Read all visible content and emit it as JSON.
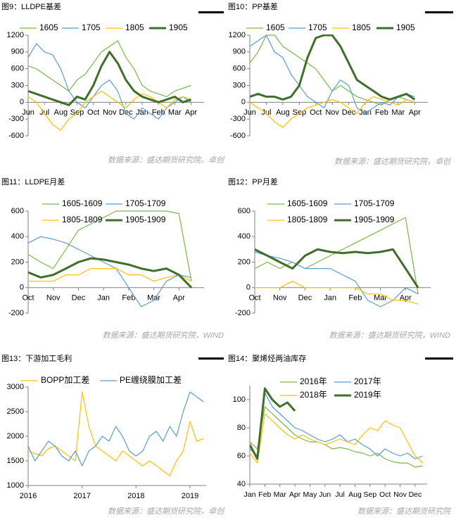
{
  "chart_data": [
    {
      "type": "line",
      "title": "图9：LLDPE基差",
      "note": "数据来源：盛达期货研究院，卓创",
      "x": [
        0,
        0.5,
        1,
        1.5,
        2,
        2.5,
        3,
        3.5,
        4,
        4.5,
        5,
        5.5,
        6,
        6.5,
        7,
        7.5,
        8,
        8.5,
        9,
        9.5,
        10
      ],
      "xlim": [
        0,
        10.8
      ],
      "xticks": [
        {
          "value": 0,
          "label": "Jun"
        },
        {
          "value": 1,
          "label": "Jul"
        },
        {
          "value": 2,
          "label": "Aug"
        },
        {
          "value": 3,
          "label": "Sep"
        },
        {
          "value": 4,
          "label": "Oct"
        },
        {
          "value": 5,
          "label": "Nov"
        },
        {
          "value": 6,
          "label": "Dec"
        },
        {
          "value": 7,
          "label": "Jan"
        },
        {
          "value": 8,
          "label": "Feb"
        },
        {
          "value": 9,
          "label": "Mar"
        },
        {
          "value": 10,
          "label": "Apr"
        }
      ],
      "ylim": [
        -600,
        1200
      ],
      "yticks": [
        -600,
        -300,
        0,
        300,
        600,
        900,
        1200
      ],
      "series": [
        {
          "name": "1605",
          "color": "#7ab648",
          "width": 1.2,
          "values": [
            650,
            600,
            500,
            400,
            300,
            200,
            400,
            500,
            700,
            900,
            1000,
            1100,
            800,
            600,
            300,
            200,
            150,
            100,
            200,
            250,
            300
          ]
        },
        {
          "name": "1705",
          "color": "#5b9bd5",
          "width": 1.2,
          "values": [
            800,
            1050,
            900,
            850,
            600,
            200,
            0,
            -100,
            100,
            300,
            400,
            200,
            -200,
            -300,
            -100,
            -200,
            -300,
            -100,
            0,
            100,
            0
          ]
        },
        {
          "name": "1805",
          "color": "#ffc000",
          "width": 1.2,
          "values": [
            100,
            0,
            -200,
            -400,
            -500,
            -300,
            -200,
            0,
            100,
            200,
            100,
            0,
            -100,
            50,
            150,
            100,
            0,
            -100,
            50,
            100,
            50
          ]
        },
        {
          "name": "1905",
          "color": "#3f6f2a",
          "width": 3,
          "values": [
            200,
            150,
            100,
            50,
            0,
            -50,
            100,
            50,
            300,
            650,
            900,
            700,
            400,
            200,
            100,
            50,
            0,
            50,
            100,
            0,
            50
          ]
        }
      ]
    },
    {
      "type": "line",
      "title": "图10：PP基差",
      "note": "数据来源：盛达期货研究院，卓创",
      "x": [
        0,
        0.5,
        1,
        1.5,
        2,
        2.5,
        3,
        3.5,
        4,
        4.5,
        5,
        5.5,
        6,
        6.5,
        7,
        7.5,
        8,
        8.5,
        9,
        9.5,
        10
      ],
      "xlim": [
        0,
        10.8
      ],
      "xticks": [
        {
          "value": 0,
          "label": "Jun"
        },
        {
          "value": 1,
          "label": "Jul"
        },
        {
          "value": 2,
          "label": "Aug"
        },
        {
          "value": 3,
          "label": "Sep"
        },
        {
          "value": 4,
          "label": "Oct"
        },
        {
          "value": 5,
          "label": "Nov"
        },
        {
          "value": 6,
          "label": "Dec"
        },
        {
          "value": 7,
          "label": "Jan"
        },
        {
          "value": 8,
          "label": "Feb"
        },
        {
          "value": 9,
          "label": "Mar"
        },
        {
          "value": 10,
          "label": "Apr"
        }
      ],
      "ylim": [
        -600,
        1200
      ],
      "yticks": [
        -600,
        -300,
        0,
        300,
        600,
        900,
        1200
      ],
      "series": [
        {
          "name": "1605",
          "color": "#7ab648",
          "width": 1.2,
          "values": [
            700,
            900,
            1200,
            1200,
            1000,
            900,
            800,
            700,
            600,
            400,
            200,
            300,
            200,
            100,
            50,
            0,
            -50,
            50,
            100,
            50,
            0
          ]
        },
        {
          "name": "1705",
          "color": "#5b9bd5",
          "width": 1.2,
          "values": [
            1000,
            1100,
            1200,
            900,
            800,
            500,
            300,
            100,
            0,
            -100,
            200,
            400,
            300,
            -100,
            -200,
            -100,
            0,
            -50,
            100,
            150,
            100
          ]
        },
        {
          "name": "1805",
          "color": "#ffc000",
          "width": 1.2,
          "values": [
            0,
            -100,
            -200,
            -350,
            -450,
            -300,
            -200,
            -100,
            -50,
            0,
            50,
            0,
            -100,
            -200,
            0,
            100,
            50,
            0,
            -50,
            50,
            0
          ]
        },
        {
          "name": "1905",
          "color": "#3f6f2a",
          "width": 3,
          "values": [
            100,
            150,
            100,
            100,
            50,
            100,
            300,
            800,
            1150,
            1200,
            1200,
            1000,
            700,
            400,
            300,
            200,
            100,
            50,
            100,
            150,
            50
          ]
        }
      ]
    },
    {
      "type": "line",
      "title": "图11：LLDPE月差",
      "note": "数据来源：盛达期货研究院，WIND",
      "x": [
        0,
        0.5,
        1,
        1.5,
        2,
        2.5,
        3,
        3.5,
        4,
        4.5,
        5,
        5.5,
        6,
        6.5
      ],
      "xlim": [
        0,
        7
      ],
      "xticks": [
        {
          "value": 0,
          "label": "Oct"
        },
        {
          "value": 1,
          "label": "Nov"
        },
        {
          "value": 2,
          "label": "Dec"
        },
        {
          "value": 3,
          "label": "Jan"
        },
        {
          "value": 4,
          "label": "Feb"
        },
        {
          "value": 5,
          "label": "Mar"
        },
        {
          "value": 6,
          "label": "Apr"
        }
      ],
      "ylim": [
        -200,
        600
      ],
      "yticks": [
        -200,
        0,
        200,
        400,
        600
      ],
      "series": [
        {
          "name": "1605-1609",
          "color": "#7ab648",
          "width": 1.2,
          "values": [
            260,
            200,
            150,
            300,
            450,
            500,
            550,
            600,
            600,
            600,
            600,
            600,
            580,
            50
          ]
        },
        {
          "name": "1705-1709",
          "color": "#5b9bd5",
          "width": 1.2,
          "values": [
            350,
            400,
            380,
            350,
            300,
            250,
            200,
            150,
            0,
            -150,
            -100,
            50,
            100,
            80
          ]
        },
        {
          "name": "1805-1809",
          "color": "#ffc000",
          "width": 1.2,
          "values": [
            50,
            50,
            50,
            100,
            100,
            150,
            150,
            150,
            100,
            100,
            50,
            80,
            100,
            50
          ]
        },
        {
          "name": "1905-1909",
          "color": "#3f6f2a",
          "width": 3,
          "values": [
            120,
            80,
            100,
            150,
            200,
            230,
            220,
            200,
            180,
            150,
            130,
            150,
            100,
            0
          ]
        }
      ]
    },
    {
      "type": "line",
      "title": "图12：PP月差",
      "note": "数据来源：盛达期货研究院，WIND",
      "x": [
        0,
        0.5,
        1,
        1.5,
        2,
        2.5,
        3,
        3.5,
        4,
        4.5,
        5,
        5.5,
        6,
        6.5
      ],
      "xlim": [
        0,
        7
      ],
      "xticks": [
        {
          "value": 0,
          "label": "Oct"
        },
        {
          "value": 1,
          "label": "Nov"
        },
        {
          "value": 2,
          "label": "Dec"
        },
        {
          "value": 3,
          "label": "Jan"
        },
        {
          "value": 4,
          "label": "Feb"
        },
        {
          "value": 5,
          "label": "Mar"
        },
        {
          "value": 6,
          "label": "Apr"
        }
      ],
      "ylim": [
        -200,
        600
      ],
      "yticks": [
        -200,
        0,
        200,
        400,
        600
      ],
      "series": [
        {
          "name": "1605-1609",
          "color": "#7ab648",
          "width": 1.2,
          "values": [
            150,
            200,
            150,
            200,
            150,
            200,
            250,
            300,
            350,
            400,
            450,
            500,
            550,
            -50
          ]
        },
        {
          "name": "1705-1709",
          "color": "#5b9bd5",
          "width": 1.2,
          "values": [
            280,
            250,
            230,
            200,
            150,
            150,
            150,
            100,
            50,
            -100,
            -150,
            -100,
            0,
            -50
          ]
        },
        {
          "name": "1805-1809",
          "color": "#ffc000",
          "width": 1.2,
          "values": [
            0,
            0,
            0,
            50,
            0,
            0,
            0,
            0,
            0,
            -50,
            -50,
            -100,
            -100,
            -130
          ]
        },
        {
          "name": "1905-1909",
          "color": "#3f6f2a",
          "width": 3,
          "values": [
            300,
            250,
            200,
            150,
            250,
            300,
            280,
            270,
            280,
            270,
            280,
            300,
            150,
            0
          ]
        }
      ]
    },
    {
      "type": "line",
      "title": "图13：下游加工毛利",
      "note": "数据来源：盛达期货研究院，卓创",
      "x": [
        2016,
        2016.125,
        2016.25,
        2016.375,
        2016.5,
        2016.625,
        2016.75,
        2016.875,
        2017,
        2017.125,
        2017.25,
        2017.375,
        2017.5,
        2017.625,
        2017.75,
        2017.875,
        2018,
        2018.125,
        2018.25,
        2018.375,
        2018.5,
        2018.625,
        2018.75,
        2018.875,
        2019,
        2019.125,
        2019.25
      ],
      "xlim": [
        2016,
        2019.3
      ],
      "xticks": [
        2016,
        2017,
        2018,
        2019
      ],
      "ylim": [
        1000,
        3000
      ],
      "yticks": [
        1000,
        1500,
        2000,
        2500,
        3000
      ],
      "series": [
        {
          "name": "BOPP加工差",
          "color": "#ffc000",
          "width": 1.2,
          "values": [
            1700,
            1650,
            1600,
            1750,
            1800,
            1700,
            1600,
            1500,
            2900,
            2200,
            1800,
            1700,
            1600,
            1500,
            1700,
            1600,
            1500,
            1400,
            1500,
            1400,
            1300,
            1200,
            1500,
            1700,
            2300,
            1900,
            1950
          ]
        },
        {
          "name": "PE缠绕膜加工差",
          "color": "#5b9bd5",
          "width": 1.2,
          "values": [
            1800,
            1500,
            1700,
            1900,
            1800,
            1600,
            1500,
            1700,
            1400,
            1700,
            1800,
            2000,
            1900,
            2200,
            2000,
            1700,
            1600,
            1700,
            2000,
            2100,
            1900,
            2200,
            2000,
            2500,
            2900,
            2800,
            2700
          ]
        }
      ]
    },
    {
      "type": "line",
      "title": "图14：聚烯烃两油库存",
      "note": "数据来源：盛达期货研究院",
      "x": [
        0,
        0.5,
        1,
        1.5,
        2,
        2.5,
        3,
        3.5,
        4,
        4.5,
        5,
        5.5,
        6,
        6.5,
        7,
        7.5,
        8,
        8.5,
        9,
        9.5,
        10,
        10.5,
        11,
        11.5
      ],
      "xlim": [
        0,
        11.8
      ],
      "xticks": [
        {
          "value": 0,
          "label": "Jan"
        },
        {
          "value": 1,
          "label": "Feb"
        },
        {
          "value": 2,
          "label": "Mar"
        },
        {
          "value": 3,
          "label": "Apr"
        },
        {
          "value": 4,
          "label": "May"
        },
        {
          "value": 5,
          "label": "Jun"
        },
        {
          "value": 6,
          "label": "Jul"
        },
        {
          "value": 7,
          "label": "Aug"
        },
        {
          "value": 8,
          "label": "Sep"
        },
        {
          "value": 9,
          "label": "Oct"
        },
        {
          "value": 10,
          "label": "Nov"
        },
        {
          "value": 11,
          "label": "Dec"
        }
      ],
      "ylim": [
        40,
        110
      ],
      "yticks": [
        40,
        60,
        80,
        100
      ],
      "series": [
        {
          "name": "2016年",
          "color": "#7ab648",
          "width": 1.2,
          "values": [
            70,
            65,
            95,
            90,
            85,
            80,
            75,
            72,
            70,
            70,
            68,
            65,
            66,
            65,
            63,
            62,
            60,
            62,
            58,
            56,
            55,
            55,
            52,
            53
          ]
        },
        {
          "name": "2017年",
          "color": "#5b9bd5",
          "width": 1.2,
          "values": [
            65,
            60,
            105,
            95,
            90,
            85,
            80,
            78,
            75,
            72,
            70,
            72,
            75,
            70,
            72,
            68,
            65,
            60,
            65,
            62,
            60,
            62,
            58,
            60
          ]
        },
        {
          "name": "2018年",
          "color": "#ffc000",
          "width": 1.2,
          "values": [
            62,
            55,
            90,
            85,
            80,
            75,
            72,
            75,
            72,
            70,
            68,
            70,
            72,
            70,
            68,
            75,
            80,
            78,
            85,
            82,
            80,
            70,
            60,
            55
          ]
        },
        {
          "name": "2019年",
          "color": "#3f6f2a",
          "width": 3,
          "values": [
            68,
            58,
            108,
            100,
            95,
            98,
            92,
            null,
            null,
            null,
            null,
            null,
            null,
            null,
            null,
            null,
            null,
            null,
            null,
            null,
            null,
            null,
            null,
            null
          ]
        }
      ]
    }
  ]
}
